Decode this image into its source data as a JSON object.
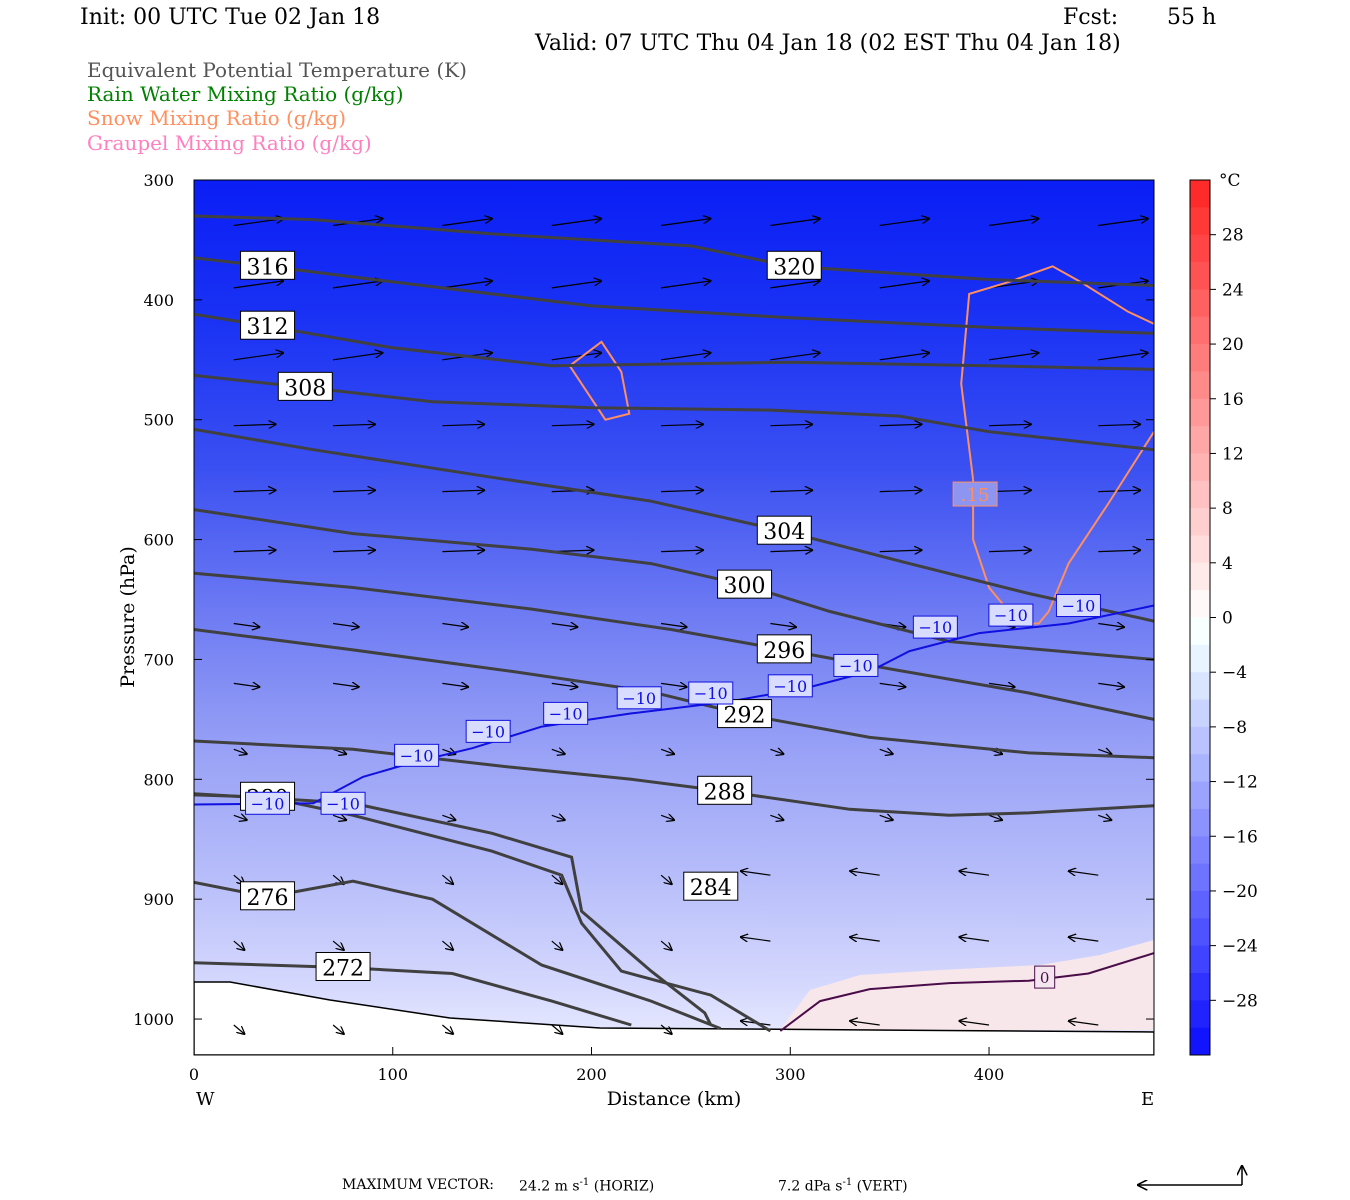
{
  "header": {
    "init": "Init: 00 UTC Tue 02 Jan 18",
    "fcst_label": "Fcst:",
    "fcst_value": "55 h",
    "valid": "Valid: 07 UTC Thu 04 Jan 18 (02 EST Thu 04 Jan 18)"
  },
  "variables": [
    {
      "label": "Equivalent Potential Temperature (K)",
      "color": "#555555"
    },
    {
      "label": "Rain Water Mixing Ratio (g/kg)",
      "color": "#008000"
    },
    {
      "label": "Snow Mixing Ratio (g/kg)",
      "color": "#ff8f5f"
    },
    {
      "label": "Graupel Mixing Ratio (g/kg)",
      "color": "#ff7fbf"
    }
  ],
  "chart_data": {
    "type": "heatmap",
    "xlabel": "Distance (km)",
    "ylabel": "Pressure (hPa)",
    "xlim": [
      0,
      483
    ],
    "ylim": [
      1030,
      300
    ],
    "x_ticks": [
      0,
      100,
      200,
      300,
      400
    ],
    "y_ticks": [
      300,
      400,
      500,
      600,
      700,
      800,
      900,
      1000
    ],
    "x_end_labels": {
      "left": "W",
      "right": "E"
    },
    "colorbar": {
      "unit": "°C",
      "range": [
        32,
        -32
      ],
      "tick_labels": [
        "28",
        "24",
        "20",
        "16",
        "12",
        "8",
        "4",
        "0",
        "−4",
        "−8",
        "−12",
        "−16",
        "−20",
        "−24",
        "−28"
      ],
      "tick_values": [
        28,
        24,
        20,
        16,
        12,
        8,
        4,
        0,
        -4,
        -8,
        -12,
        -16,
        -20,
        -24,
        -28
      ]
    },
    "theta_e_contours": [
      {
        "value": 320,
        "label": "320",
        "label_at": [
          302,
          372
        ],
        "points": [
          [
            0,
            330
          ],
          [
            60,
            333
          ],
          [
            150,
            345
          ],
          [
            250,
            355
          ],
          [
            300,
            372
          ],
          [
            400,
            383
          ],
          [
            483,
            388
          ]
        ]
      },
      {
        "value": 316,
        "label": "316",
        "label_at": [
          37,
          372
        ],
        "points": [
          [
            0,
            365
          ],
          [
            37,
            372
          ],
          [
            100,
            385
          ],
          [
            200,
            405
          ],
          [
            300,
            415
          ],
          [
            400,
            423
          ],
          [
            483,
            428
          ]
        ]
      },
      {
        "value": 312,
        "label": "312",
        "label_at": [
          37,
          422
        ],
        "points": [
          [
            0,
            412
          ],
          [
            37,
            422
          ],
          [
            100,
            440
          ],
          [
            180,
            455
          ],
          [
            300,
            452
          ],
          [
            400,
            455
          ],
          [
            483,
            458
          ]
        ]
      },
      {
        "value": 308,
        "label": "308",
        "label_at": [
          56,
          473
        ],
        "points": [
          [
            0,
            463
          ],
          [
            56,
            473
          ],
          [
            120,
            485
          ],
          [
            200,
            490
          ],
          [
            290,
            492
          ],
          [
            355,
            497
          ],
          [
            400,
            510
          ],
          [
            483,
            525
          ]
        ]
      },
      {
        "value": 304,
        "label": "304",
        "label_at": [
          297,
          593
        ],
        "points": [
          [
            0,
            508
          ],
          [
            60,
            525
          ],
          [
            150,
            548
          ],
          [
            230,
            568
          ],
          [
            297,
            593
          ],
          [
            360,
            620
          ],
          [
            420,
            645
          ],
          [
            483,
            668
          ]
        ]
      },
      {
        "value": 300,
        "label": "300",
        "label_at": [
          277,
          638
        ],
        "points": [
          [
            0,
            575
          ],
          [
            80,
            595
          ],
          [
            170,
            608
          ],
          [
            230,
            620
          ],
          [
            277,
            638
          ],
          [
            320,
            660
          ],
          [
            380,
            685
          ],
          [
            483,
            700
          ]
        ]
      },
      {
        "value": 296,
        "label": "296",
        "label_at": [
          297,
          692
        ],
        "points": [
          [
            0,
            628
          ],
          [
            80,
            640
          ],
          [
            170,
            658
          ],
          [
            240,
            675
          ],
          [
            297,
            692
          ],
          [
            340,
            705
          ],
          [
            420,
            728
          ],
          [
            483,
            750
          ]
        ]
      },
      {
        "value": 292,
        "label": "292",
        "label_at": [
          277,
          746
        ],
        "points": [
          [
            0,
            675
          ],
          [
            80,
            692
          ],
          [
            160,
            710
          ],
          [
            230,
            727
          ],
          [
            277,
            746
          ],
          [
            340,
            765
          ],
          [
            420,
            778
          ],
          [
            483,
            782
          ]
        ]
      },
      {
        "value": 288,
        "label": "288",
        "label_at": [
          267,
          810
        ],
        "points": [
          [
            0,
            768
          ],
          [
            80,
            775
          ],
          [
            160,
            790
          ],
          [
            220,
            800
          ],
          [
            267,
            810
          ],
          [
            330,
            825
          ],
          [
            380,
            830
          ],
          [
            420,
            828
          ],
          [
            483,
            822
          ]
        ]
      },
      {
        "value": 284,
        "label": "284",
        "label_at": [
          260,
          890
        ],
        "points": [
          [
            0,
            812
          ],
          [
            80,
            820
          ],
          [
            150,
            845
          ],
          [
            190,
            865
          ],
          [
            195,
            910
          ],
          [
            230,
            960
          ],
          [
            257,
            995
          ],
          [
            260,
            1005
          ]
        ]
      },
      {
        "value": 280,
        "label": "280",
        "label_at": [
          37,
          815
        ],
        "points": [
          [
            0,
            813
          ],
          [
            37,
            815
          ],
          [
            80,
            830
          ],
          [
            150,
            860
          ],
          [
            185,
            880
          ],
          [
            195,
            920
          ],
          [
            215,
            960
          ],
          [
            260,
            980
          ],
          [
            290,
            1010
          ]
        ]
      },
      {
        "value": 276,
        "label": "276",
        "label_at": [
          37,
          898
        ],
        "points": [
          [
            0,
            886
          ],
          [
            37,
            898
          ],
          [
            80,
            885
          ],
          [
            120,
            900
          ],
          [
            175,
            955
          ],
          [
            230,
            985
          ],
          [
            265,
            1008
          ]
        ]
      },
      {
        "value": 272,
        "label": "272",
        "label_at": [
          75,
          957
        ],
        "points": [
          [
            0,
            953
          ],
          [
            75,
            957
          ],
          [
            130,
            962
          ],
          [
            180,
            985
          ],
          [
            220,
            1005
          ]
        ]
      }
    ],
    "temperature_contours": [
      {
        "value": -10,
        "label": "−10",
        "points": [
          [
            0,
            821
          ],
          [
            60,
            820
          ],
          [
            85,
            798
          ],
          [
            110,
            786
          ],
          [
            140,
            774
          ],
          [
            175,
            756
          ],
          [
            220,
            745
          ],
          [
            270,
            735
          ],
          [
            310,
            723
          ],
          [
            340,
            710
          ],
          [
            360,
            693
          ],
          [
            395,
            678
          ],
          [
            440,
            670
          ],
          [
            483,
            655
          ]
        ]
      },
      {
        "value": 0,
        "label": "0",
        "points": [
          [
            295,
            1010
          ],
          [
            315,
            985
          ],
          [
            340,
            975
          ],
          [
            380,
            970
          ],
          [
            420,
            968
          ],
          [
            450,
            962
          ],
          [
            483,
            945
          ]
        ]
      }
    ],
    "temperature_label_positions": [
      [
        37,
        820
      ],
      [
        75,
        820
      ],
      [
        112,
        780
      ],
      [
        148,
        760
      ],
      [
        187,
        745
      ],
      [
        224,
        732
      ],
      [
        260,
        728
      ],
      [
        300,
        722
      ],
      [
        333,
        705
      ],
      [
        373,
        673
      ],
      [
        411,
        663
      ],
      [
        445,
        655
      ]
    ],
    "snow_contours": [
      {
        "value": 0.15,
        "label": ".15",
        "points": [
          [
            392,
            550
          ],
          [
            386,
            470
          ],
          [
            390,
            395
          ],
          [
            410,
            385
          ],
          [
            432,
            372
          ],
          [
            446,
            385
          ],
          [
            470,
            410
          ],
          [
            483,
            420
          ]
        ]
      },
      {
        "value": 0.15,
        "points": [
          [
            483,
            510
          ],
          [
            460,
            570
          ],
          [
            440,
            620
          ],
          [
            430,
            660
          ],
          [
            425,
            670
          ],
          [
            415,
            670
          ],
          [
            400,
            640
          ],
          [
            392,
            600
          ],
          [
            392,
            550
          ]
        ]
      },
      {
        "value": 0.15,
        "points": [
          [
            189,
            455
          ],
          [
            205,
            435
          ],
          [
            215,
            460
          ],
          [
            219,
            495
          ],
          [
            207,
            500
          ],
          [
            189,
            455
          ]
        ]
      }
    ],
    "vectors": {
      "max_horizontal": "24.2 m s",
      "max_horizontal_unit_suffix": "(HORIZ)",
      "max_vertical": "7.2 dPa s",
      "max_vertical_unit_suffix": "(VERT)"
    }
  },
  "footer": {
    "max_vector_label": "MAXIMUM VECTOR:",
    "horiz_value": "24.2 m s",
    "horiz_exp": "-1",
    "horiz_suffix": " (HORIZ)",
    "vert_value": "7.2 dPa s",
    "vert_exp": "-1",
    "vert_suffix": " (VERT)"
  }
}
